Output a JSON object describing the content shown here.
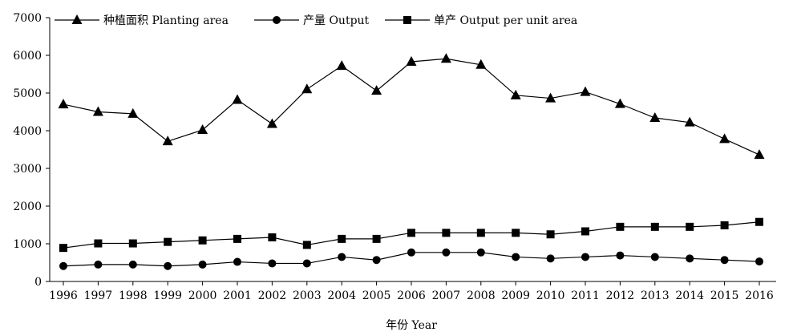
{
  "chart_data": {
    "type": "line",
    "title": "",
    "xlabel": "年份 Year",
    "ylabel": "",
    "ylim": [
      0,
      7000
    ],
    "yticks": [
      0,
      1000,
      2000,
      3000,
      4000,
      5000,
      6000,
      7000
    ],
    "grid": false,
    "legend_position": "top",
    "x": [
      "1996",
      "1997",
      "1998",
      "1999",
      "2000",
      "2001",
      "2002",
      "2003",
      "2004",
      "2005",
      "2006",
      "2007",
      "2008",
      "2009",
      "2010",
      "2011",
      "2012",
      "2013",
      "2014",
      "2015",
      "2016"
    ],
    "series": [
      {
        "name": "种植面积 Planting area",
        "marker": "triangle",
        "values": [
          4700,
          4500,
          4450,
          3720,
          4020,
          4820,
          4180,
          5100,
          5720,
          5060,
          5830,
          5910,
          5750,
          4940,
          4860,
          5030,
          4710,
          4340,
          4220,
          3780,
          3360
        ]
      },
      {
        "name": "产量 Output",
        "marker": "circle",
        "values": [
          410,
          450,
          450,
          410,
          450,
          520,
          480,
          480,
          650,
          570,
          770,
          770,
          770,
          650,
          610,
          650,
          690,
          650,
          610,
          570,
          530
        ]
      },
      {
        "name": "单产 Output per unit area",
        "marker": "square",
        "values": [
          890,
          1010,
          1010,
          1050,
          1090,
          1130,
          1170,
          970,
          1130,
          1130,
          1290,
          1290,
          1290,
          1290,
          1250,
          1330,
          1450,
          1450,
          1450,
          1490,
          1580
        ]
      }
    ]
  }
}
